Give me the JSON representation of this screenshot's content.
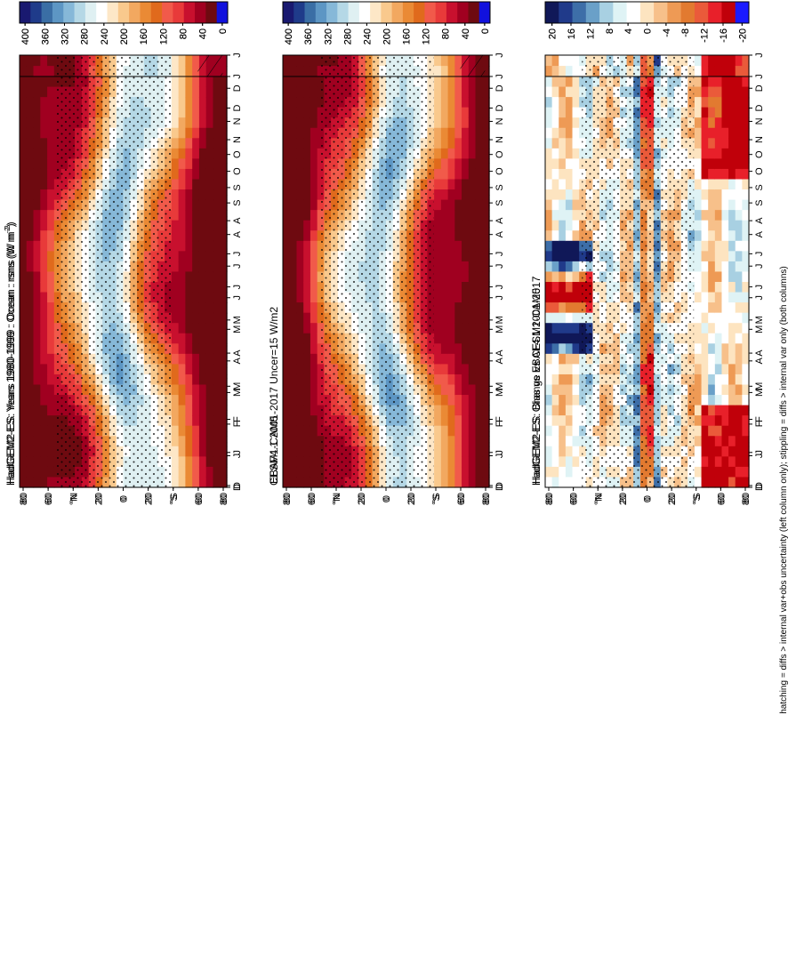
{
  "figure": {
    "footnote": "hatching = diffs > internal var+obs uncertainty (left column only); stippling = diffs > internal var only (both columns)"
  },
  "colors": {
    "abs_scale": [
      "#f5f5f5",
      "#191970",
      "#1f3b8a",
      "#3a6ea5",
      "#5d96c4",
      "#86b8d8",
      "#b5d8e6",
      "#dff0f2",
      "#ffffff",
      "#fde7c7",
      "#f9c98d",
      "#f2a860",
      "#ea8a35",
      "#e06a1c",
      "#f15a4a",
      "#e83a3a",
      "#c8102e",
      "#a00020",
      "#6e0a10",
      "#1111dd"
    ],
    "diff_scale": [
      "#000000",
      "#101858",
      "#203a8a",
      "#3d6ea8",
      "#6aa0c8",
      "#a8d0e2",
      "#dff3f5",
      "#ffffff",
      "#fde4c0",
      "#f7c08a",
      "#ee9a55",
      "#e27a30",
      "#ea5a3a",
      "#e8202a",
      "#c0000a",
      "#1a1aff"
    ]
  },
  "chart_data": [
    {
      "type": "heatmap",
      "panel": "left-top",
      "title": "HadGEM2-ES: Years 1980-1999 : Ocean : rsns (W m",
      "title_sup": "-2",
      "title_close": ")",
      "x_ticks": [
        "D",
        "J",
        "F",
        "M",
        "A",
        "M",
        "J",
        "J",
        "A",
        "S",
        "O",
        "N",
        "D",
        "J"
      ],
      "y_ticks": [
        "80",
        "60",
        "°N",
        "20",
        "0",
        "20",
        "°S",
        "60",
        "80"
      ],
      "colorbar_ticks": [
        "400",
        "360",
        "320",
        "280",
        "240",
        "200",
        "160",
        "120",
        "80",
        "40",
        "0"
      ],
      "color_range": [
        0,
        400
      ]
    },
    {
      "type": "heatmap",
      "panel": "right-top",
      "title": "HadGEM2-ES: Years 1980-1999 : Ocean : rsns (W m",
      "title_sup": "-2",
      "title_close": ")",
      "x_ticks": [
        "D",
        "J",
        "F",
        "M",
        "A",
        "M",
        "J",
        "J",
        "A",
        "S",
        "O",
        "N",
        "D",
        "J"
      ],
      "y_ticks": [
        "80",
        "60",
        "°N",
        "20",
        "0",
        "20",
        "°S",
        "60",
        "80"
      ],
      "colorbar_ticks": [
        "400",
        "360",
        "320",
        "280",
        "240",
        "200",
        "160",
        "120",
        "80",
        "40",
        "0"
      ],
      "color_range": [
        0,
        400
      ]
    },
    {
      "type": "heatmap",
      "panel": "left-middle",
      "title": "EBAF4.1 2001-2017 Uncer=15 W/m2",
      "x_ticks": [
        "D",
        "J",
        "F",
        "M",
        "A",
        "M",
        "J",
        "J",
        "A",
        "S",
        "O",
        "N",
        "D",
        "J"
      ],
      "y_ticks": [
        "80",
        "60",
        "°N",
        "20",
        "0",
        "20",
        "°S",
        "60",
        "80"
      ],
      "colorbar_ticks": [
        "400",
        "360",
        "320",
        "280",
        "240",
        "200",
        "160",
        "120",
        "80",
        "40",
        "0"
      ],
      "color_range": [
        0,
        400
      ]
    },
    {
      "type": "heatmap",
      "panel": "right-middle",
      "title": "CESM1-CAM5",
      "x_ticks": [
        "D",
        "J",
        "F",
        "M",
        "A",
        "M",
        "J",
        "J",
        "A",
        "S",
        "O",
        "N",
        "D",
        "J"
      ],
      "y_ticks": [
        "80",
        "60",
        "°N",
        "20",
        "0",
        "20",
        "°S",
        "60",
        "80"
      ],
      "colorbar_ticks": [
        "400",
        "360",
        "320",
        "280",
        "240",
        "200",
        "160",
        "120",
        "80",
        "40",
        "0"
      ],
      "color_range": [
        0,
        400
      ]
    },
    {
      "type": "heatmap",
      "panel": "left-bottom",
      "title": "HadGEM2-ES: Bias vs EBAF4.1 2001-2017",
      "x_ticks": [
        "D",
        "J",
        "F",
        "M",
        "A",
        "M",
        "J",
        "J",
        "A",
        "S",
        "O",
        "N",
        "D",
        "J"
      ],
      "y_ticks": [
        "80",
        "60",
        "°N",
        "20",
        "0",
        "20",
        "°S",
        "60",
        "80"
      ],
      "colorbar_ticks": [
        "20",
        "16",
        "12",
        "8",
        "4",
        "0",
        "-4",
        "-8",
        "-12",
        "-16",
        "-20"
      ],
      "color_range": [
        -20,
        20
      ]
    },
    {
      "type": "heatmap",
      "panel": "right-bottom",
      "title": "HadGEM2-ES: Change vs CESM1-CAM5",
      "x_ticks": [
        "D",
        "J",
        "F",
        "M",
        "A",
        "M",
        "J",
        "J",
        "A",
        "S",
        "O",
        "N",
        "D",
        "J"
      ],
      "y_ticks": [
        "80",
        "60",
        "°N",
        "20",
        "0",
        "20",
        "°S",
        "60",
        "80"
      ],
      "colorbar_ticks": [
        "20",
        "16",
        "12",
        "8",
        "4",
        "0",
        "-4",
        "-8",
        "-12",
        "-16",
        "-20"
      ],
      "color_range": [
        -20,
        20
      ]
    }
  ]
}
